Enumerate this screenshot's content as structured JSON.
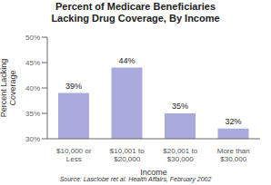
{
  "chart_data": {
    "type": "bar",
    "title": "Percent of Medicare Beneficiaries\nLacking Drug Coverage, By Income",
    "categories": [
      "$10,000 or\nLess",
      "$10,001 to\n$20,000",
      "$20,001 to\n$30,000",
      "More than\n$30,000"
    ],
    "values": [
      39,
      44,
      35,
      32
    ],
    "value_labels": [
      "39%",
      "44%",
      "35%",
      "32%"
    ],
    "color": "#aaaadd",
    "xlabel": "Income",
    "ylabel": "Percent Lacking\nCoverage",
    "ylim": [
      30,
      50
    ],
    "yticks": [
      {
        "value": 30,
        "label": "30%"
      },
      {
        "value": 35,
        "label": "35%"
      },
      {
        "value": 40,
        "label": "40%"
      },
      {
        "value": 45,
        "label": "45%"
      },
      {
        "value": 50,
        "label": "50%"
      }
    ],
    "annotations": [
      "Source: Lasclobe ret al. Health Affairs, February 2002"
    ]
  }
}
